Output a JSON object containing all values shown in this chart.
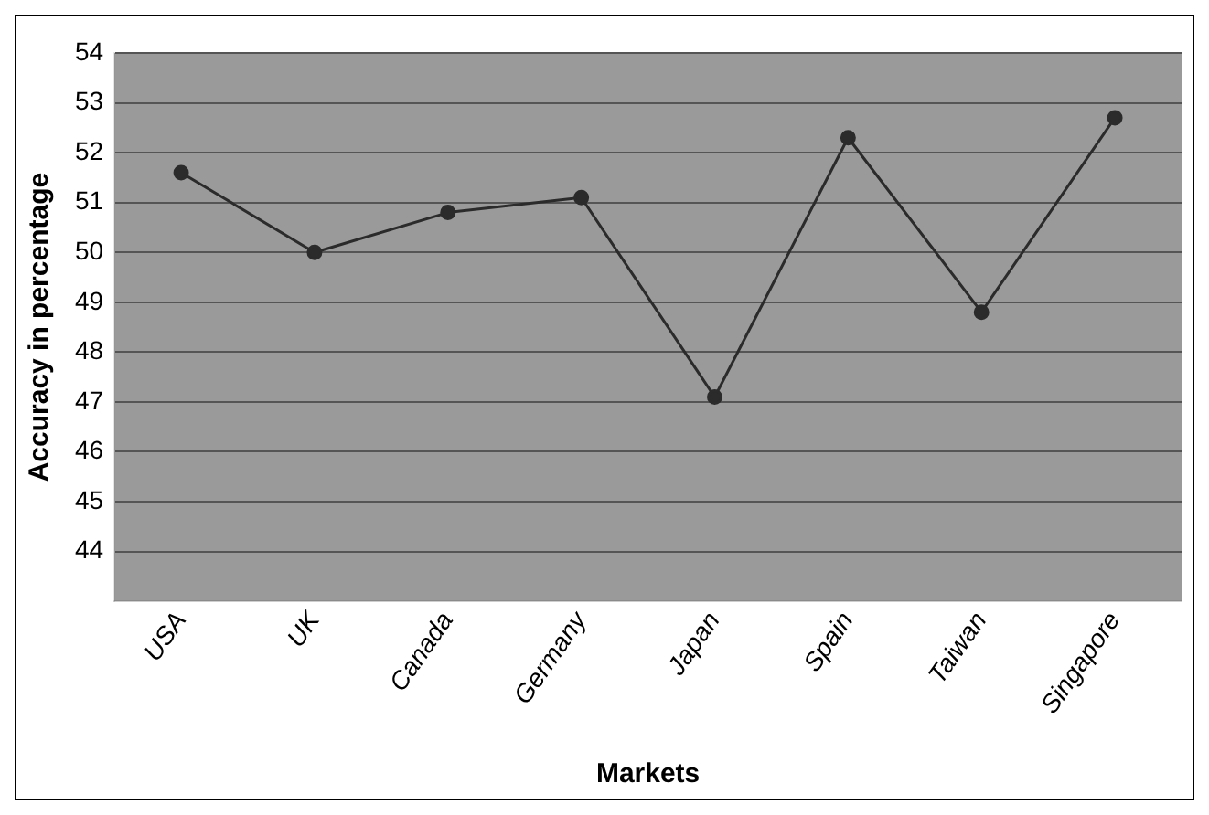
{
  "chart_data": {
    "type": "line",
    "xlabel": "Markets",
    "ylabel": "Accuracy in percentage",
    "categories": [
      "USA",
      "UK",
      "Canada",
      "Germany",
      "Japan",
      "Spain",
      "Taiwan",
      "Singapore"
    ],
    "series": [
      {
        "color": "#2b2b2b",
        "values": [
          51.6,
          50.0,
          50.8,
          51.1,
          47.1,
          52.3,
          48.8,
          52.7
        ]
      }
    ],
    "ylim": [
      43,
      54
    ],
    "yticks": [
      44,
      45,
      46,
      47,
      48,
      49,
      50,
      51,
      52,
      53,
      54
    ],
    "grid": "y",
    "marker": "circle",
    "line_style": "solid",
    "legend": false
  }
}
